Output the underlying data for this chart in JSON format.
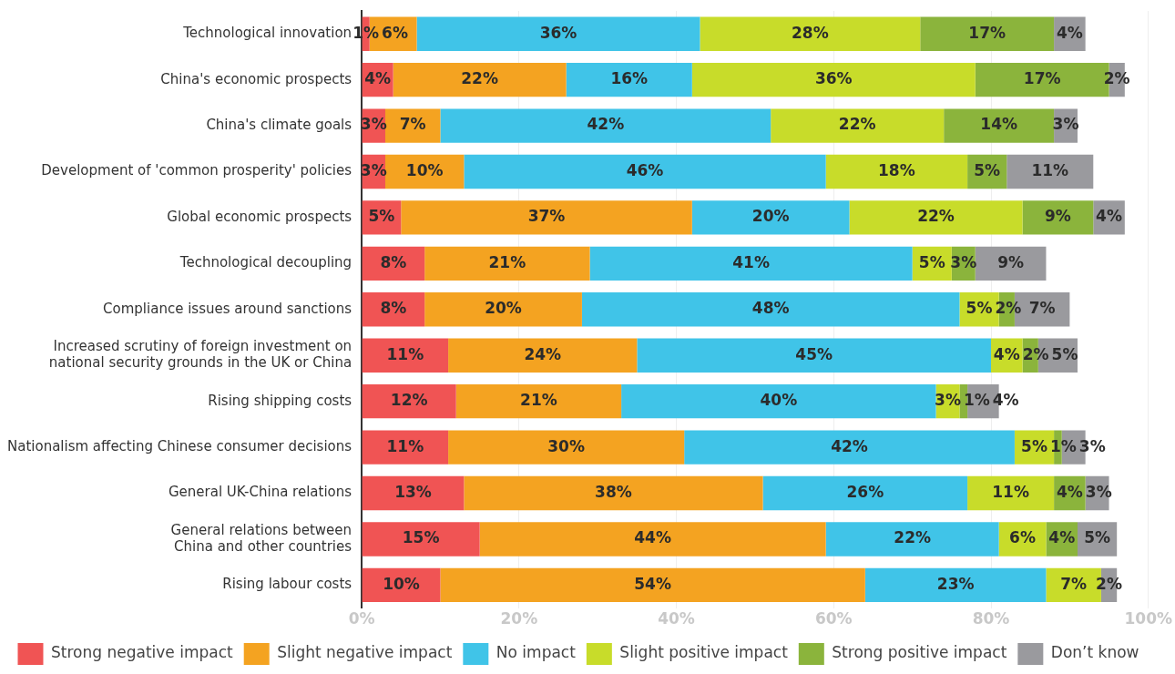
{
  "chart_data": {
    "type": "bar",
    "orientation": "horizontal",
    "stacked": true,
    "categories": [
      "Technological innovation",
      "China's economic prospects",
      "China's climate goals",
      "Development of 'common prosperity' policies",
      "Global economic prospects",
      "Technological decoupling",
      "Compliance issues around sanctions",
      "Increased scrutiny of foreign investment on national security grounds in the UK or China",
      "Rising shipping costs",
      "Nationalism affecting Chinese consumer decisions",
      "General UK-China relations",
      "General relations between China and other countries",
      "Rising labour costs"
    ],
    "series": [
      {
        "name": "Strong negative impact",
        "color": "#f05454",
        "values": [
          1,
          4,
          3,
          3,
          5,
          8,
          8,
          11,
          12,
          11,
          13,
          15,
          10
        ],
        "value_labels": [
          "1%",
          "4%",
          "3%",
          "3%",
          "5%",
          "8%",
          "8%",
          "11%",
          "12%",
          "11%",
          "13%",
          "15%",
          "10%"
        ]
      },
      {
        "name": "Slight negative impact",
        "color": "#f4a321",
        "values": [
          6,
          22,
          7,
          10,
          37,
          21,
          20,
          24,
          21,
          30,
          38,
          44,
          54
        ],
        "value_labels": [
          "6%",
          "22%",
          "7%",
          "10%",
          "37%",
          "21%",
          "20%",
          "24%",
          "21%",
          "30%",
          "38%",
          "44%",
          "54%"
        ]
      },
      {
        "name": "No impact",
        "color": "#40c4e8",
        "values": [
          36,
          16,
          42,
          46,
          20,
          41,
          48,
          45,
          40,
          42,
          26,
          22,
          23
        ],
        "value_labels": [
          "36%",
          "16%",
          "42%",
          "46%",
          "20%",
          "41%",
          "48%",
          "45%",
          "40%",
          "42%",
          "26%",
          "22%",
          "23%"
        ]
      },
      {
        "name": "Slight positive impact",
        "color": "#c8dc2a",
        "values": [
          28,
          36,
          22,
          18,
          22,
          5,
          5,
          4,
          3,
          5,
          11,
          6,
          7
        ],
        "value_labels": [
          "28%",
          "36%",
          "22%",
          "18%",
          "22%",
          "5%",
          "5%",
          "4%",
          "3%",
          "5%",
          "11%",
          "6%",
          "7%"
        ]
      },
      {
        "name": "Strong positive impact",
        "color": "#8bb43c",
        "values": [
          17,
          17,
          14,
          5,
          9,
          3,
          2,
          2,
          1,
          1,
          4,
          4,
          null
        ],
        "value_labels": [
          "17%",
          "17%",
          "14%",
          "5%",
          "9%",
          "3%",
          "2%",
          "2%",
          "1%",
          "1%",
          "4%",
          "4%",
          null
        ]
      },
      {
        "name": "Don’t know",
        "color": "#9a9a9e",
        "values": [
          4,
          2,
          3,
          11,
          4,
          9,
          7,
          5,
          4,
          3,
          3,
          5,
          2
        ],
        "value_labels": [
          "4%",
          "2%",
          "3%",
          "11%",
          "4%",
          "9%",
          "7%",
          "5%",
          "4%",
          "3%",
          "3%",
          "5%",
          "2%"
        ]
      }
    ],
    "xlim": [
      0,
      100
    ],
    "xticks": [
      {
        "value": 0,
        "label": "0%"
      },
      {
        "value": 20,
        "label": "20%"
      },
      {
        "value": 40,
        "label": "40%"
      },
      {
        "value": 60,
        "label": "60%"
      },
      {
        "value": 80,
        "label": "80%"
      },
      {
        "value": 100,
        "label": "100%"
      }
    ],
    "grid": "x",
    "legend": "bottom"
  }
}
